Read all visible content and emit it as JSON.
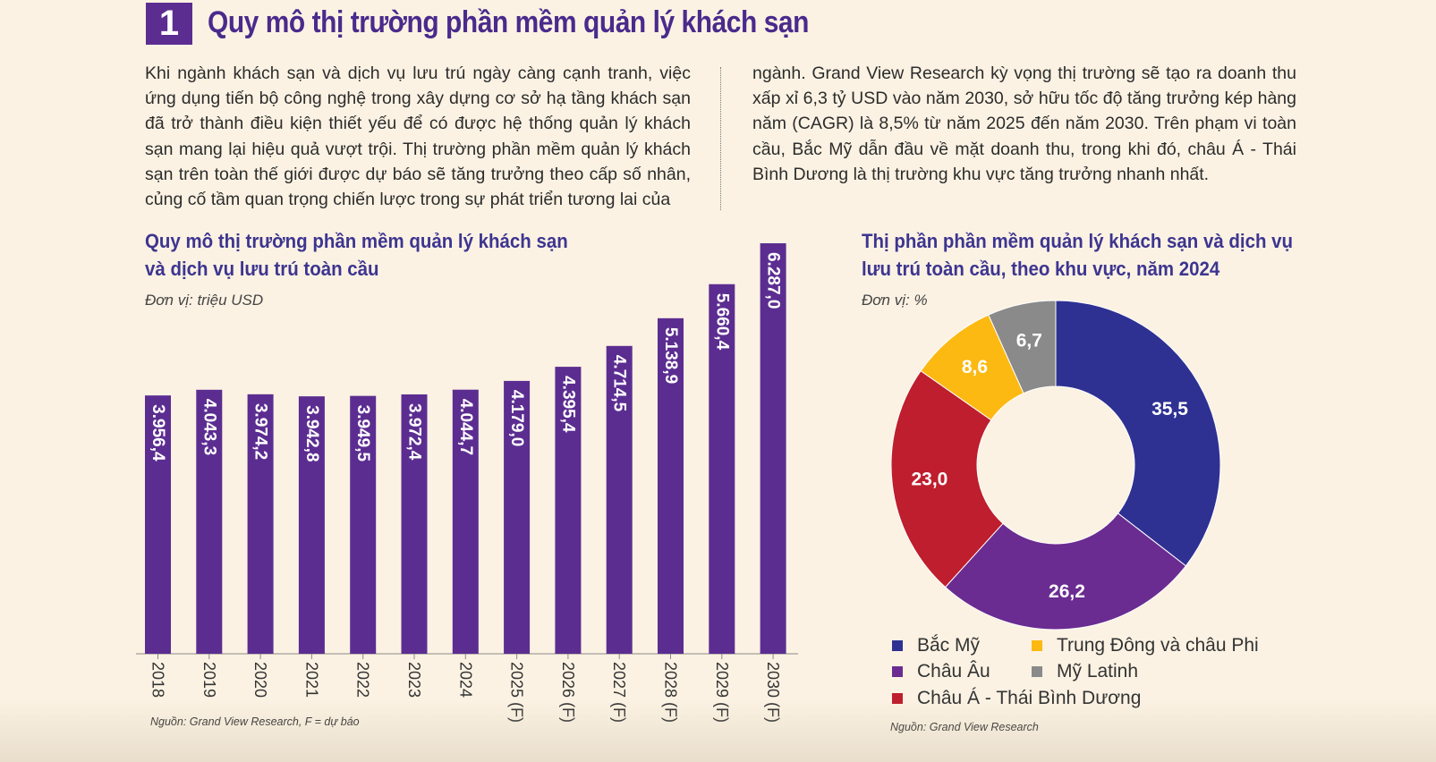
{
  "header": {
    "section_number": "1",
    "title": "Quy mô thị trường phần mềm quản lý khách sạn"
  },
  "intro": {
    "left": "Khi ngành khách sạn và dịch vụ lưu trú ngày càng cạnh tranh, việc ứng dụng tiến bộ công nghệ trong xây dựng cơ sở hạ tầng khách sạn đã trở thành điều kiện thiết yếu để có được hệ thống quản lý khách sạn mang lại hiệu quả vượt trội. Thị trường phần mềm quản lý khách sạn trên toàn thế giới được dự báo sẽ tăng trưởng theo cấp số nhân, củng cố tầm quan trọng chiến lược trong sự phát triển tương lai của",
    "right": "ngành. Grand View Research kỳ vọng thị trường sẽ tạo ra doanh thu xấp xỉ 6,3 tỷ USD vào năm 2030, sở hữu tốc độ tăng trưởng kép hàng năm (CAGR) là 8,5% từ năm 2025 đến năm 2030. Trên phạm vi toàn cầu, Bắc Mỹ dẫn đầu về mặt doanh thu, trong khi đó, châu Á - Thái Bình Dương là thị trường khu vực tăng trưởng nhanh nhất."
  },
  "bar_section": {
    "title_line1": "Quy mô thị trường phần mềm quản lý khách sạn",
    "title_line2": "và dịch vụ lưu trú toàn cầu",
    "unit": "Đơn vị: triệu USD",
    "source": "Nguồn: Grand View Research, F = dự báo"
  },
  "donut_section": {
    "title_line1": "Thị phần phần mềm quản lý khách sạn và dịch vụ",
    "title_line2": "lưu trú toàn cầu, theo khu vực, năm 2024",
    "unit": "Đơn vị: %",
    "source": "Nguồn: Grand View Research"
  },
  "colors": {
    "bar": "#5c2d91",
    "bac_my": "#2e3192",
    "chau_au": "#6a2c91",
    "chau_a_tbd": "#be1e2d",
    "trung_dong_chau_phi": "#fbb912",
    "my_latinh": "#8a8a8a",
    "title": "#3d3590",
    "background": "#fbf2e3"
  },
  "chart_data": [
    {
      "type": "bar",
      "title": "Quy mô thị trường phần mềm quản lý khách sạn và dịch vụ lưu trú toàn cầu",
      "unit": "Đơn vị: triệu USD",
      "categories": [
        "2018",
        "2019",
        "2020",
        "2021",
        "2022",
        "2023",
        "2024",
        "2025 (F)",
        "2026 (F)",
        "2027 (F)",
        "2028 (F)",
        "2029 (F)",
        "2030 (F)"
      ],
      "values": [
        3956.4,
        4043.3,
        3974.2,
        3942.8,
        3949.5,
        3972.4,
        4044.7,
        4179.0,
        4395.4,
        4714.5,
        5138.9,
        5660.4,
        6287.0
      ],
      "labels": [
        "3.956,4",
        "4.043,3",
        "3.974,2",
        "3.942,8",
        "3.949,5",
        "3.972,4",
        "4.044,7",
        "4.179,0",
        "4.395,4",
        "4.714,5",
        "5.138,9",
        "5.660,4",
        "6.287,0"
      ],
      "color": "#5c2d91",
      "grid": false,
      "label_orientation": "vertical"
    },
    {
      "type": "pie",
      "variant": "donut",
      "title": "Thị phần phần mềm quản lý khách sạn và dịch vụ lưu trú toàn cầu, theo khu vực, năm 2024",
      "unit": "Đơn vị: %",
      "slices": [
        {
          "name": "Bắc Mỹ",
          "value": 35.5,
          "label": "35,5",
          "color": "#2e3192"
        },
        {
          "name": "Châu Âu",
          "value": 26.2,
          "label": "26,2",
          "color": "#6a2c91"
        },
        {
          "name": "Châu Á - Thái Bình Dương",
          "value": 23.0,
          "label": "23,0",
          "color": "#be1e2d"
        },
        {
          "name": "Trung Đông và châu Phi",
          "value": 8.6,
          "label": "8,6",
          "color": "#fbb912"
        },
        {
          "name": "Mỹ Latinh",
          "value": 6.7,
          "label": "6,7",
          "color": "#8a8a8a"
        }
      ],
      "legend": [
        {
          "name": "Bắc Mỹ",
          "color": "#2e3192"
        },
        {
          "name": "Trung Đông và châu Phi",
          "color": "#fbb912"
        },
        {
          "name": "Châu Âu",
          "color": "#6a2c91"
        },
        {
          "name": "Mỹ Latinh",
          "color": "#8a8a8a"
        },
        {
          "name": "Châu Á - Thái Bình Dương",
          "color": "#be1e2d"
        }
      ],
      "legend_position": "bottom",
      "start": "top, clockwise"
    }
  ]
}
